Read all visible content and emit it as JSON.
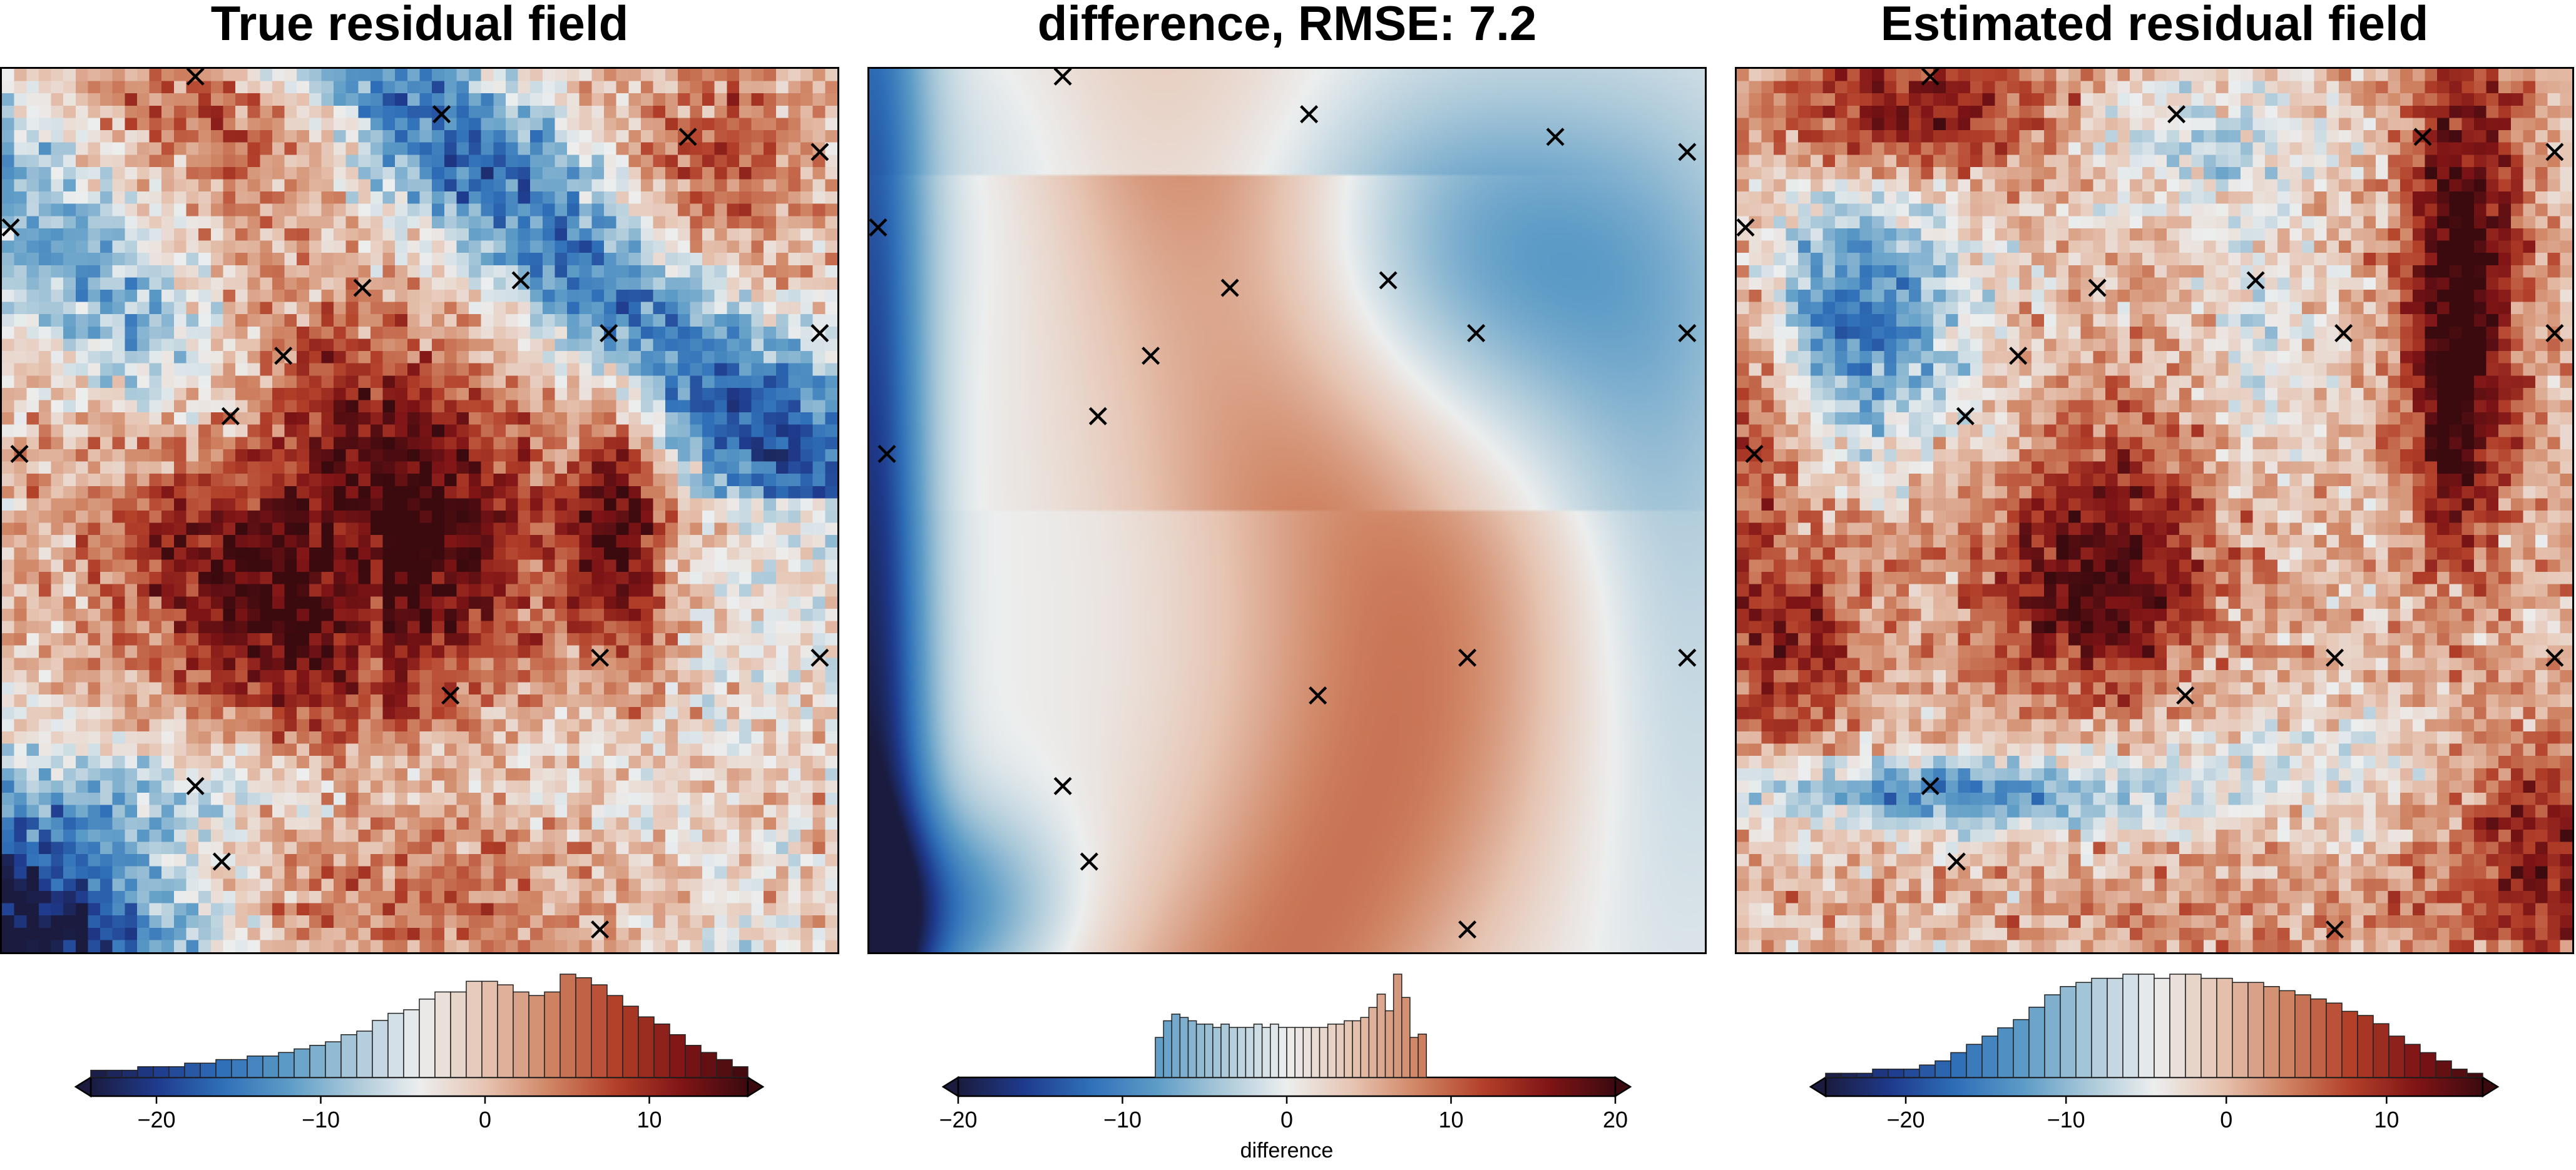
{
  "colors": {
    "colormap": [
      "#1a1b3e",
      "#1f3a8c",
      "#2f6fb8",
      "#5c9bc6",
      "#a9c8d9",
      "#eceeee",
      "#e6c4b2",
      "#cf8463",
      "#b23f29",
      "#7f1416",
      "#3b0a0f"
    ],
    "marker": "#000000",
    "frame": "#000000",
    "hist_edge": "#222222"
  },
  "markers": {
    "icon": "x-mark-icon",
    "points": [
      [
        -84,
        100
      ],
      [
        -56,
        95
      ],
      [
        -28,
        92
      ],
      [
        -65,
        72
      ],
      [
        -47,
        73
      ],
      [
        -37,
        66
      ],
      [
        -74,
        63
      ],
      [
        -80,
        55
      ],
      [
        -104,
        50
      ],
      [
        -38,
        23
      ],
      [
        -55,
        18
      ],
      [
        -84,
        6
      ],
      [
        -38,
        -13
      ],
      [
        -81,
        -4
      ],
      [
        -13,
        66
      ],
      [
        -13,
        90
      ],
      [
        -13,
        23
      ],
      [
        -105,
        80
      ]
    ]
  },
  "panels": [
    {
      "title": "True residual field",
      "field": "true",
      "cbar": {
        "range": [
          -24,
          16
        ],
        "ticks": [
          -20,
          -10,
          0,
          10
        ],
        "tick_labels": [
          "−20",
          "−10",
          "0",
          "10"
        ],
        "label": "",
        "hist_counts": [
          2,
          2,
          2,
          3,
          3,
          3,
          4,
          4,
          5,
          5,
          6,
          6,
          7,
          8,
          9,
          10,
          12,
          13,
          16,
          18,
          19,
          22,
          24,
          24,
          27,
          27,
          26,
          24,
          23,
          24,
          29,
          28,
          26,
          23,
          20,
          17,
          15,
          12,
          9,
          7,
          5,
          3
        ]
      }
    },
    {
      "title": "difference, RMSE: 7.2",
      "field": "difference",
      "cbar": {
        "range": [
          -20,
          20
        ],
        "ticks": [
          -20,
          -10,
          0,
          10,
          20
        ],
        "tick_labels": [
          "−20",
          "−10",
          "0",
          "10",
          "20"
        ],
        "label": "difference",
        "hist_counts": [
          0,
          0,
          0,
          0,
          0,
          0,
          0,
          0,
          0,
          0,
          0,
          0,
          0,
          0,
          0,
          0,
          0,
          0,
          0,
          0,
          0,
          0,
          0,
          0,
          0,
          0,
          0,
          0,
          0,
          0,
          0,
          0,
          0,
          0,
          0,
          0,
          0,
          0,
          0,
          0,
          0,
          0,
          0,
          0,
          0,
          0,
          0,
          0,
          0,
          0,
          0,
          0,
          0,
          0,
          0,
          0,
          0,
          0,
          0,
          0,
          0,
          0,
          0,
          0,
          0,
          0,
          0,
          0,
          0,
          0,
          0,
          0,
          0,
          0,
          0,
          0,
          0,
          0,
          0,
          0,
          0,
          0,
          0,
          0,
          0,
          0,
          0,
          0,
          0,
          0,
          0,
          0,
          0,
          0,
          0,
          0,
          0,
          0,
          0,
          0,
          0,
          0,
          0,
          0,
          0,
          0,
          0,
          0,
          0,
          0,
          0,
          0,
          0,
          0,
          0,
          0,
          0,
          0,
          0,
          0,
          0,
          0,
          0,
          0,
          0,
          0,
          0,
          0,
          0,
          0,
          0,
          0,
          0,
          0,
          0,
          0,
          0,
          0,
          0,
          0,
          0,
          0,
          0,
          0,
          0,
          0,
          0,
          0,
          0,
          0,
          0,
          0,
          0,
          0,
          0,
          0,
          0,
          0,
          0,
          0,
          0,
          0,
          0,
          0,
          0,
          0,
          0,
          0,
          0,
          0,
          0,
          0,
          0,
          0,
          0,
          0,
          0,
          0,
          0,
          0,
          0,
          0,
          0,
          0,
          0,
          0,
          0,
          0,
          0,
          0,
          0,
          0,
          0,
          0,
          0,
          0,
          0,
          0,
          0,
          0
        ],
        "hist_start": -8,
        "hist_bin": 0.5,
        "hist_values": [
          12,
          17,
          19,
          18,
          17,
          16,
          16,
          15,
          16,
          15,
          15,
          15,
          16,
          15,
          16,
          15,
          15,
          15,
          15,
          15,
          15,
          16,
          16,
          17,
          17,
          18,
          21,
          25,
          20,
          31,
          24,
          12,
          13
        ]
      }
    },
    {
      "title": "Estimated residual field",
      "field": "estimated",
      "cbar": {
        "range": [
          -25,
          16
        ],
        "ticks": [
          -20,
          -10,
          0,
          10
        ],
        "tick_labels": [
          "−20",
          "−10",
          "0",
          "10"
        ],
        "label": "",
        "hist_counts": [
          1,
          1,
          1,
          2,
          2,
          2,
          3,
          4,
          6,
          8,
          10,
          12,
          14,
          17,
          20,
          22,
          23,
          24,
          24,
          25,
          25,
          24,
          25,
          25,
          24,
          24,
          23,
          23,
          22,
          21,
          20,
          19,
          18,
          16,
          15,
          13,
          10,
          8,
          6,
          4,
          2,
          1
        ]
      }
    }
  ],
  "chart_data": [
    {
      "type": "heatmap",
      "title": "True residual field",
      "grid": "68 x 72 pixel grid",
      "colorbar": {
        "range": [
          -24,
          16
        ],
        "ticks": [
          -20,
          -10,
          0,
          10
        ],
        "label": "",
        "histogram": true
      },
      "features": [
        {
          "description": "strong positive anomaly (dark red) center-left",
          "max": 16
        },
        {
          "description": "strong negative anomaly (dark blue) bottom-left corner",
          "min": -24
        },
        {
          "description": "negative band (blue) top center, diagonal"
        }
      ]
    },
    {
      "type": "heatmap",
      "title": "difference, RMSE: 7.2",
      "rmse": 7.2,
      "colorbar": {
        "range": [
          -20,
          20
        ],
        "ticks": [
          -20,
          -10,
          0,
          10,
          20
        ],
        "label": "difference",
        "histogram": true
      },
      "value_range": [
        -20,
        9
      ],
      "features": [
        {
          "description": "smooth positive (red) S-shaped region through center",
          "max": 9
        },
        {
          "description": "negative (blue) region top-right",
          "min": -6
        },
        {
          "description": "strong negative along left edge",
          "min": -20
        }
      ]
    },
    {
      "type": "heatmap",
      "title": "Estimated residual field",
      "grid": "68 x 72 pixel grid",
      "colorbar": {
        "range": [
          -25,
          16
        ],
        "ticks": [
          -20,
          -10,
          0,
          10
        ],
        "label": "",
        "histogram": true
      },
      "features": [
        {
          "description": "positive (red) streak top-right",
          "max": 16
        },
        {
          "description": "positive blobs center and lower-left"
        },
        {
          "description": "negative (blue) blob upper-left and band lower-left",
          "min": -25
        }
      ]
    }
  ]
}
